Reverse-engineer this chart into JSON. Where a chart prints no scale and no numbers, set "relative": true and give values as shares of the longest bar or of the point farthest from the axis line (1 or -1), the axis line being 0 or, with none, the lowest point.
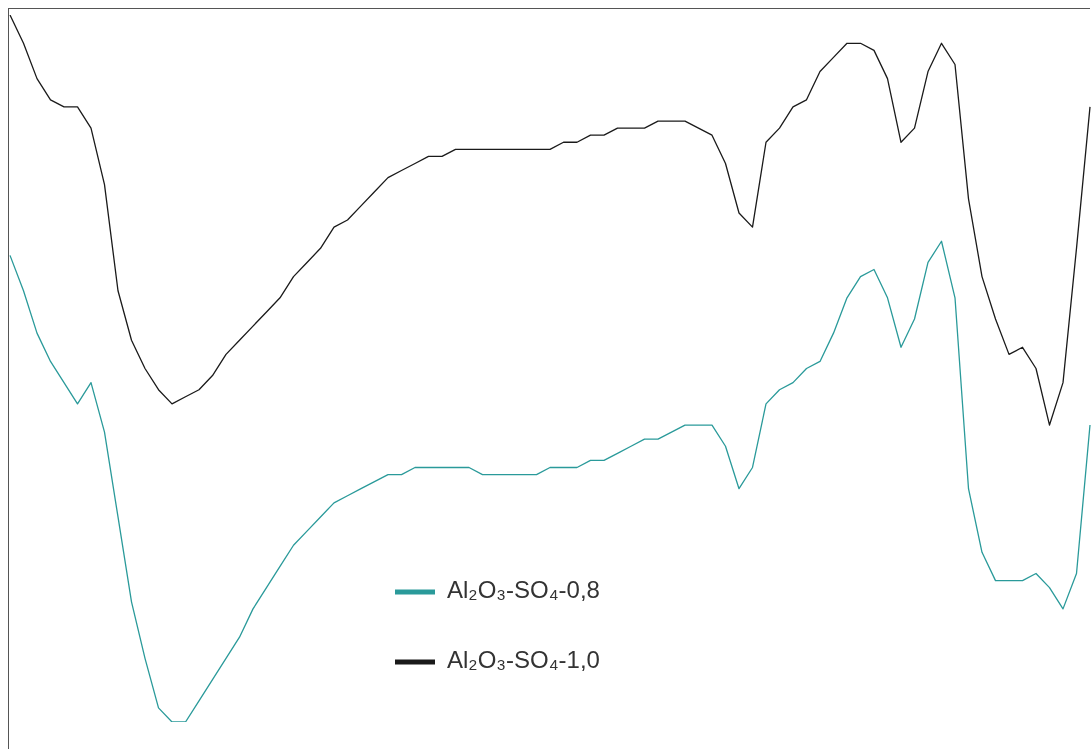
{
  "chart_data": {
    "type": "line",
    "relative": true,
    "legend": "bottom",
    "categories": [
      null,
      null,
      null,
      null,
      null,
      null,
      null,
      null,
      null,
      null,
      null,
      null,
      null,
      null,
      null,
      null,
      null,
      null,
      null,
      null,
      null,
      null,
      null,
      null,
      null,
      null,
      null,
      null,
      null,
      null,
      null,
      null,
      null,
      null,
      null,
      null,
      null,
      null,
      null,
      null,
      null,
      null,
      null,
      null,
      null,
      null,
      null,
      null,
      null,
      null,
      null,
      null,
      null,
      null,
      null,
      null,
      null,
      null,
      null,
      null,
      null,
      null,
      null,
      null,
      null,
      null,
      null,
      null,
      null,
      null,
      null,
      null,
      null,
      null,
      null,
      null,
      null,
      null,
      null,
      null,
      null
    ],
    "series": [
      {
        "name": "Al₂O₃-SO₄-0,8",
        "color": "#2a9a9a",
        "values": [
          0.66,
          0.61,
          0.55,
          0.51,
          0.48,
          0.45,
          0.48,
          0.41,
          0.29,
          0.17,
          0.09,
          0.02,
          0.0,
          0.0,
          0.03,
          0.06,
          0.09,
          0.12,
          0.16,
          0.19,
          0.22,
          0.25,
          0.27,
          0.29,
          0.31,
          0.32,
          0.33,
          0.34,
          0.35,
          0.35,
          0.36,
          0.36,
          0.36,
          0.36,
          0.36,
          0.35,
          0.35,
          0.35,
          0.35,
          0.35,
          0.36,
          0.36,
          0.36,
          0.37,
          0.37,
          0.38,
          0.39,
          0.4,
          0.4,
          0.41,
          0.42,
          0.42,
          0.42,
          0.39,
          0.33,
          0.36,
          0.45,
          0.47,
          0.48,
          0.5,
          0.51,
          0.55,
          0.6,
          0.63,
          0.64,
          0.6,
          0.53,
          0.57,
          0.65,
          0.68,
          0.6,
          0.33,
          0.24,
          0.2,
          0.2,
          0.2,
          0.21,
          0.19,
          0.16,
          0.21,
          0.42
        ]
      },
      {
        "name": "Al₂O₃-SO₄-1,0",
        "color": "#1a1a1a",
        "values": [
          1.0,
          0.96,
          0.91,
          0.88,
          0.87,
          0.87,
          0.84,
          0.76,
          0.61,
          0.54,
          0.5,
          0.47,
          0.45,
          0.46,
          0.47,
          0.49,
          0.52,
          0.54,
          0.56,
          0.58,
          0.6,
          0.63,
          0.65,
          0.67,
          0.7,
          0.71,
          0.73,
          0.75,
          0.77,
          0.78,
          0.79,
          0.8,
          0.8,
          0.81,
          0.81,
          0.81,
          0.81,
          0.81,
          0.81,
          0.81,
          0.81,
          0.82,
          0.82,
          0.83,
          0.83,
          0.84,
          0.84,
          0.84,
          0.85,
          0.85,
          0.85,
          0.84,
          0.83,
          0.79,
          0.72,
          0.7,
          0.82,
          0.84,
          0.87,
          0.88,
          0.92,
          0.94,
          0.96,
          0.96,
          0.95,
          0.91,
          0.82,
          0.84,
          0.92,
          0.96,
          0.93,
          0.74,
          0.63,
          0.57,
          0.52,
          0.53,
          0.5,
          0.42,
          0.48,
          0.67,
          0.87
        ]
      }
    ]
  }
}
